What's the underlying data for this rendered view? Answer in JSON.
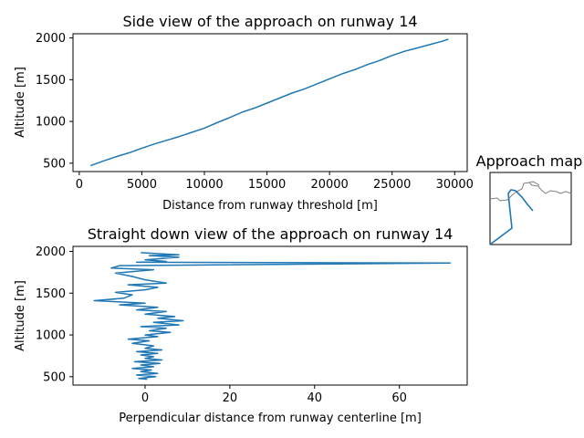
{
  "chart_data": [
    {
      "type": "line",
      "title": "Side view of the approach on runway 14",
      "xlabel": "Distance from runway threshold [m]",
      "ylabel": "Altitude [m]",
      "xlim": [
        -500,
        31000
      ],
      "ylim": [
        400,
        2050
      ],
      "xticks": [
        0,
        5000,
        10000,
        15000,
        20000,
        25000,
        30000
      ],
      "yticks": [
        500,
        1000,
        1500,
        2000
      ],
      "color": "#1f77b4",
      "series": [
        {
          "x": [
            900,
            2000,
            3000,
            4000,
            5000,
            6000,
            7000,
            8000,
            9000,
            10000,
            11000,
            12000,
            13000,
            14000,
            15000,
            16000,
            17000,
            18000,
            19000,
            20000,
            21000,
            22000,
            23000,
            24000,
            25000,
            26000,
            27000,
            28000,
            29000,
            29500
          ],
          "y": [
            470,
            530,
            580,
            625,
            680,
            730,
            775,
            820,
            870,
            920,
            985,
            1045,
            1110,
            1160,
            1220,
            1280,
            1340,
            1390,
            1450,
            1510,
            1570,
            1620,
            1680,
            1730,
            1790,
            1840,
            1880,
            1920,
            1960,
            1985
          ]
        }
      ]
    },
    {
      "type": "line",
      "title": "Straight down view of the approach on runway 14",
      "xlabel": "Perpendicular distance from runway centerline [m]",
      "ylabel": "Altitude [m]",
      "xlim": [
        -17,
        76
      ],
      "ylim": [
        400,
        2060
      ],
      "xticks": [
        0,
        20,
        40,
        60
      ],
      "yticks": [
        500,
        1000,
        1500,
        2000
      ],
      "color": "#1f77b4",
      "series": [
        {
          "x": [
            0.5,
            -1.5,
            2.5,
            -2,
            3,
            -1,
            1.5,
            -3,
            2,
            -1,
            3.5,
            -2.5,
            4,
            0,
            2,
            -1,
            3,
            -2,
            4,
            0,
            2,
            -3,
            1,
            -4,
            3,
            0,
            6,
            1,
            5,
            -1,
            8,
            2,
            9,
            3,
            7,
            0,
            5,
            -2,
            3,
            -6,
            0,
            -8,
            -12,
            -5,
            -3,
            -7,
            0,
            3,
            -4,
            5,
            0,
            -3,
            -7,
            2,
            -8,
            -6,
            72,
            -2,
            5,
            0,
            8,
            1,
            8,
            -1
          ],
          "y": [
            470,
            480,
            500,
            520,
            540,
            560,
            580,
            600,
            620,
            640,
            660,
            680,
            700,
            720,
            740,
            760,
            780,
            800,
            820,
            840,
            870,
            900,
            930,
            950,
            980,
            1000,
            1030,
            1050,
            1080,
            1100,
            1120,
            1150,
            1170,
            1200,
            1220,
            1250,
            1280,
            1300,
            1330,
            1360,
            1380,
            1400,
            1410,
            1440,
            1480,
            1510,
            1540,
            1570,
            1600,
            1620,
            1660,
            1700,
            1740,
            1780,
            1800,
            1830,
            1860,
            1870,
            1880,
            1900,
            1930,
            1950,
            1960,
            1985
          ]
        }
      ]
    }
  ],
  "inset": {
    "title": "Approach map"
  }
}
